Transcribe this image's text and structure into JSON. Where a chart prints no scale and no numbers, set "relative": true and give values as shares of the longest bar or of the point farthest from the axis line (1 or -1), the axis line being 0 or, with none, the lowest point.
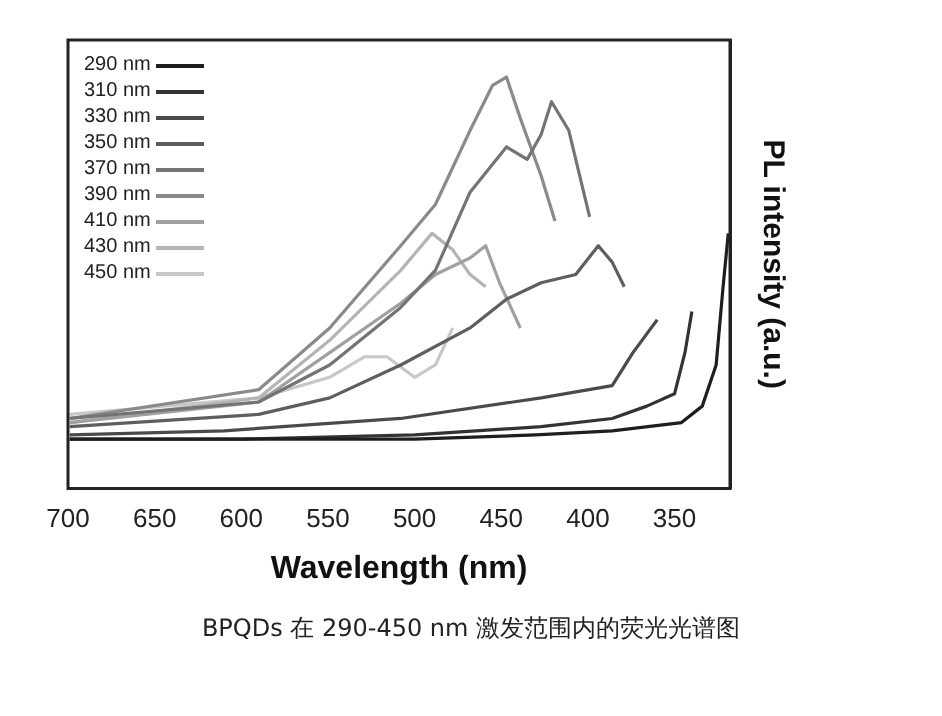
{
  "chart_data": {
    "type": "line",
    "xlabel": "Wavelength (nm)",
    "ylabel": "PL intensity (a.u.)",
    "relative": true,
    "xlim": [
      700,
      318
    ],
    "xticks": [
      700,
      650,
      600,
      550,
      500,
      450,
      400,
      350
    ],
    "legend": "top left",
    "grid": false,
    "marker": "none",
    "annotations": [
      "BPQDs 在 290-450 nm 激发范围内的荧光光谱图"
    ],
    "series": [
      {
        "name": "290 nm",
        "color": "#1e1e1e",
        "x": [
          699,
          600,
          500,
          430,
          386,
          346,
          334,
          326,
          322,
          319
        ],
        "values": [
          0.12,
          0.12,
          0.12,
          0.13,
          0.14,
          0.16,
          0.2,
          0.3,
          0.49,
          0.62
        ]
      },
      {
        "name": "310 nm",
        "color": "#333333",
        "x": [
          699,
          600,
          500,
          427,
          386,
          366,
          350,
          344,
          340
        ],
        "values": [
          0.12,
          0.12,
          0.13,
          0.15,
          0.17,
          0.2,
          0.23,
          0.33,
          0.43
        ]
      },
      {
        "name": "330 nm",
        "color": "#4a4a4a",
        "x": [
          699,
          610,
          508,
          427,
          386,
          374,
          360
        ],
        "values": [
          0.13,
          0.14,
          0.17,
          0.22,
          0.25,
          0.33,
          0.41
        ]
      },
      {
        "name": "350 nm",
        "color": "#5e5e5e",
        "x": [
          699,
          590,
          549,
          508,
          468,
          447,
          427,
          407,
          394,
          386,
          379
        ],
        "values": [
          0.15,
          0.18,
          0.22,
          0.3,
          0.39,
          0.46,
          0.5,
          0.52,
          0.59,
          0.55,
          0.49
        ]
      },
      {
        "name": "370 nm",
        "color": "#747474",
        "x": [
          699,
          590,
          549,
          508,
          488,
          468,
          447,
          435,
          427,
          421,
          411,
          399
        ],
        "values": [
          0.17,
          0.21,
          0.3,
          0.44,
          0.53,
          0.72,
          0.83,
          0.8,
          0.86,
          0.94,
          0.87,
          0.66
        ]
      },
      {
        "name": "390 nm",
        "color": "#8a8a8a",
        "x": [
          699,
          590,
          549,
          508,
          488,
          468,
          455,
          447,
          439,
          427,
          419
        ],
        "values": [
          0.17,
          0.24,
          0.39,
          0.59,
          0.69,
          0.87,
          0.98,
          1.0,
          0.9,
          0.76,
          0.65
        ]
      },
      {
        "name": "410 nm",
        "color": "#a0a0a0",
        "x": [
          699,
          590,
          549,
          508,
          488,
          468,
          459,
          451,
          439
        ],
        "values": [
          0.16,
          0.21,
          0.33,
          0.45,
          0.52,
          0.56,
          0.59,
          0.5,
          0.39
        ]
      },
      {
        "name": "430 nm",
        "color": "#b4b4b4",
        "x": [
          699,
          590,
          549,
          508,
          490,
          478,
          468,
          459
        ],
        "values": [
          0.16,
          0.22,
          0.36,
          0.53,
          0.62,
          0.58,
          0.52,
          0.49
        ]
      },
      {
        "name": "450 nm",
        "color": "#c8c8c8",
        "x": [
          699,
          590,
          549,
          529,
          516,
          500,
          488,
          478
        ],
        "values": [
          0.18,
          0.22,
          0.27,
          0.32,
          0.32,
          0.27,
          0.3,
          0.39
        ]
      }
    ]
  }
}
